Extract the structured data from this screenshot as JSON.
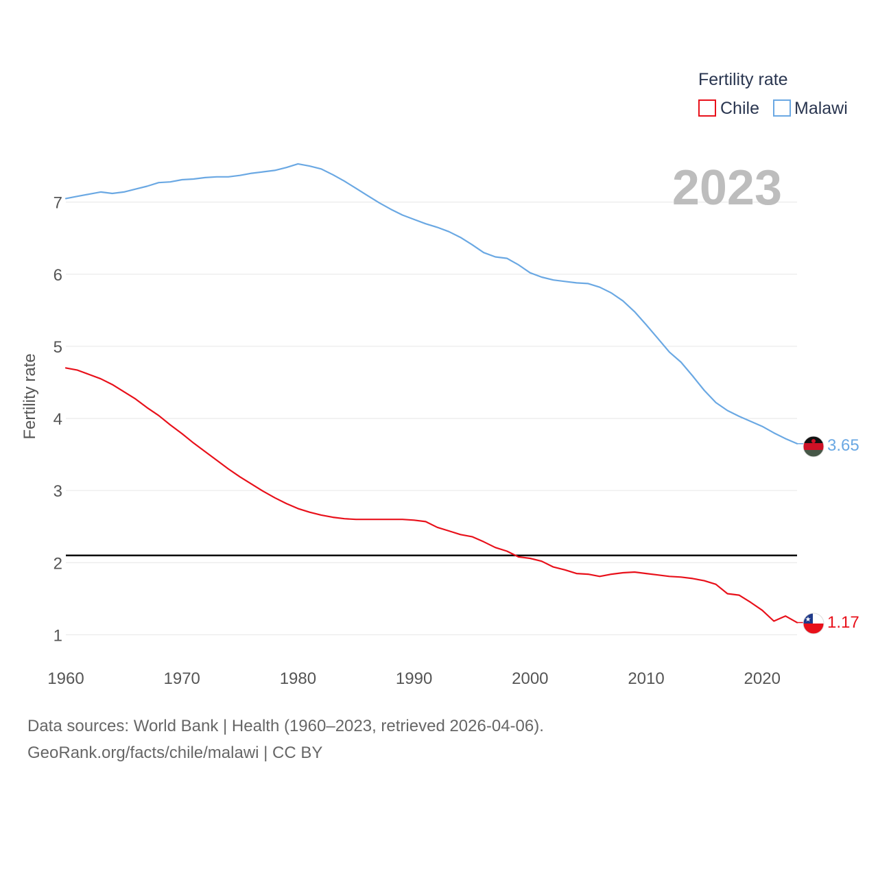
{
  "chart_data": {
    "type": "line",
    "title": "",
    "xlabel": "",
    "ylabel": "Fertility rate",
    "xlim": [
      1960,
      2023
    ],
    "ylim": [
      0.5,
      7.9
    ],
    "x_ticks": [
      1960,
      1970,
      1980,
      1990,
      2000,
      2010,
      2020
    ],
    "y_ticks": [
      1,
      2,
      3,
      4,
      5,
      6,
      7
    ],
    "grid": true,
    "reference_line": 2.1,
    "year_display": "2023",
    "legend": {
      "title": "Fertility rate",
      "position": "top-right"
    },
    "x": [
      1960,
      1961,
      1962,
      1963,
      1964,
      1965,
      1966,
      1967,
      1968,
      1969,
      1970,
      1971,
      1972,
      1973,
      1974,
      1975,
      1976,
      1977,
      1978,
      1979,
      1980,
      1981,
      1982,
      1983,
      1984,
      1985,
      1986,
      1987,
      1988,
      1989,
      1990,
      1991,
      1992,
      1993,
      1994,
      1995,
      1996,
      1997,
      1998,
      1999,
      2000,
      2001,
      2002,
      2003,
      2004,
      2005,
      2006,
      2007,
      2008,
      2009,
      2010,
      2011,
      2012,
      2013,
      2014,
      2015,
      2016,
      2017,
      2018,
      2019,
      2020,
      2021,
      2022,
      2023
    ],
    "series": [
      {
        "name": "Chile",
        "color": "#e8101a",
        "end_label": "1.17",
        "values": [
          4.7,
          4.67,
          4.61,
          4.55,
          4.47,
          4.37,
          4.27,
          4.15,
          4.04,
          3.91,
          3.79,
          3.66,
          3.54,
          3.42,
          3.3,
          3.19,
          3.09,
          2.99,
          2.9,
          2.82,
          2.75,
          2.7,
          2.66,
          2.63,
          2.61,
          2.6,
          2.6,
          2.6,
          2.6,
          2.6,
          2.59,
          2.57,
          2.49,
          2.44,
          2.39,
          2.36,
          2.29,
          2.21,
          2.16,
          2.08,
          2.06,
          2.02,
          1.94,
          1.9,
          1.85,
          1.84,
          1.81,
          1.84,
          1.86,
          1.87,
          1.85,
          1.83,
          1.81,
          1.8,
          1.78,
          1.75,
          1.7,
          1.57,
          1.55,
          1.45,
          1.34,
          1.19,
          1.26,
          1.17
        ]
      },
      {
        "name": "Malawi",
        "color": "#6aa8e3",
        "end_label": "3.65",
        "values": [
          7.05,
          7.08,
          7.11,
          7.14,
          7.12,
          7.14,
          7.18,
          7.22,
          7.27,
          7.28,
          7.31,
          7.32,
          7.34,
          7.35,
          7.35,
          7.37,
          7.4,
          7.42,
          7.44,
          7.48,
          7.53,
          7.5,
          7.46,
          7.38,
          7.29,
          7.19,
          7.09,
          6.99,
          6.9,
          6.82,
          6.76,
          6.7,
          6.65,
          6.59,
          6.51,
          6.41,
          6.3,
          6.24,
          6.22,
          6.13,
          6.02,
          5.96,
          5.92,
          5.9,
          5.88,
          5.87,
          5.82,
          5.74,
          5.63,
          5.48,
          5.3,
          5.11,
          4.92,
          4.78,
          4.59,
          4.39,
          4.22,
          4.11,
          4.03,
          3.96,
          3.89,
          3.8,
          3.72,
          3.65
        ]
      }
    ]
  },
  "footer": {
    "line1": "Data sources: World Bank | Health (1960–2023, retrieved 2026-04-06).",
    "line2": "GeoRank.org/facts/chile/malawi | CC BY"
  },
  "icons": {
    "chile_flag": "chile-flag-icon",
    "malawi_flag": "malawi-flag-icon"
  }
}
